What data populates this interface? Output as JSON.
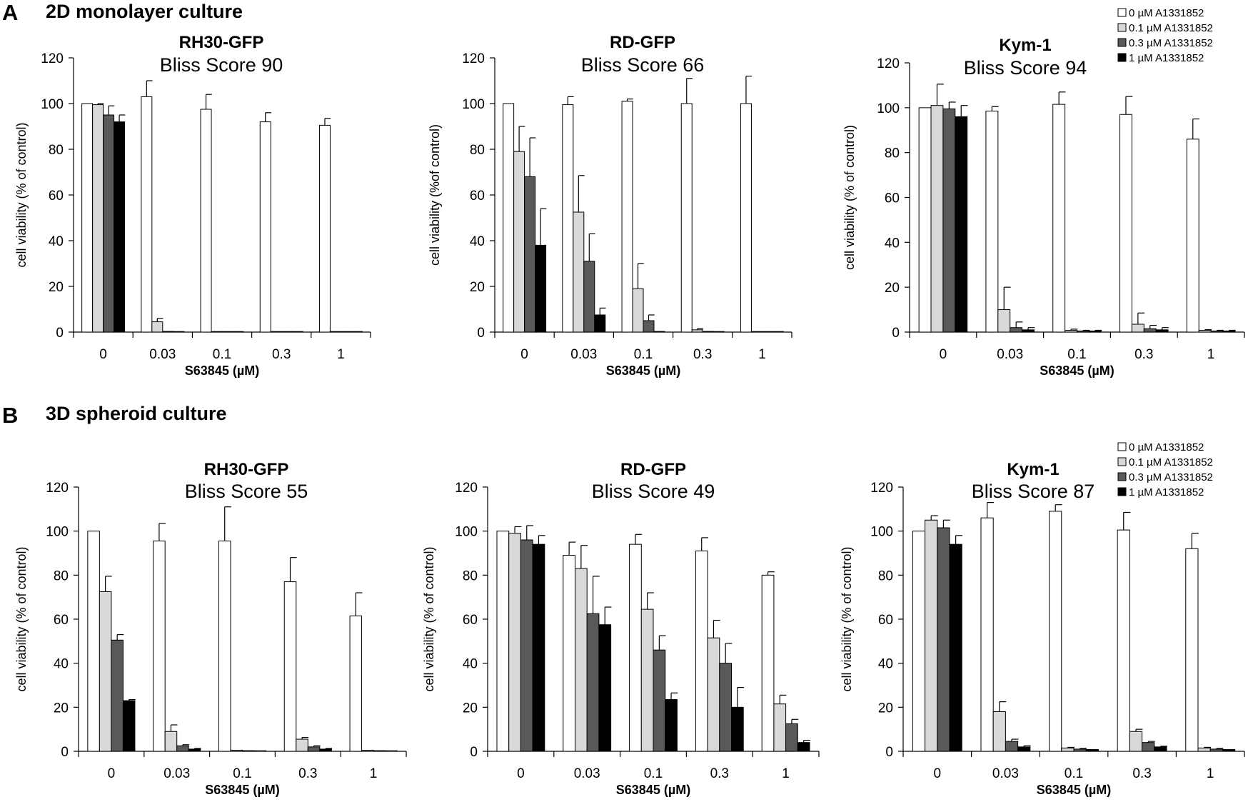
{
  "panels": [
    {
      "letter": "A",
      "title": "2D monolayer culture"
    },
    {
      "letter": "B",
      "title": "3D spheroid culture"
    }
  ],
  "legend": {
    "items": [
      {
        "label": "0 µM A1331852",
        "color": "#ffffff"
      },
      {
        "label": "0.1 µM A1331852",
        "color": "#d9d9d9"
      },
      {
        "label": "0.3 µM A1331852",
        "color": "#595959"
      },
      {
        "label": "1 µM A1331852",
        "color": "#000000"
      }
    ]
  },
  "chart_data": [
    {
      "type": "bar",
      "panel": "A",
      "title": "RH30-GFP",
      "subtitle": "Bliss Score 90",
      "categories": [
        "0",
        "0.03",
        "0.1",
        "0.3",
        "1"
      ],
      "xlabel": "S63845 (µM)",
      "ylabel": "cell viability (% of control)",
      "ylim": [
        0,
        120
      ],
      "yticks": [
        0,
        20,
        40,
        60,
        80,
        100,
        120
      ],
      "series": [
        {
          "name": "0 µM A1331852",
          "values": [
            100,
            103,
            97.5,
            92,
            90.5
          ],
          "errors": [
            0,
            7,
            6.5,
            4,
            3
          ]
        },
        {
          "name": "0.1 µM A1331852",
          "values": [
            99.5,
            4.5,
            0,
            0,
            0
          ],
          "errors": [
            0.5,
            1.5,
            0,
            0,
            0
          ]
        },
        {
          "name": "0.3 µM A1331852",
          "values": [
            95,
            0.3,
            0,
            0,
            0
          ],
          "errors": [
            4,
            0,
            0,
            0,
            0
          ]
        },
        {
          "name": "1 µM A1331852",
          "values": [
            92,
            0,
            0,
            0,
            0
          ],
          "errors": [
            3,
            0,
            0,
            0,
            0
          ]
        }
      ]
    },
    {
      "type": "bar",
      "panel": "A",
      "title": "RD-GFP",
      "subtitle": "Bliss Score 66",
      "categories": [
        "0",
        "0.03",
        "0.1",
        "0.3",
        "1"
      ],
      "xlabel": "S63845 (µM)",
      "ylabel": "cell viability (%of control)",
      "ylim": [
        0,
        120
      ],
      "yticks": [
        0,
        20,
        40,
        60,
        80,
        100,
        120
      ],
      "series": [
        {
          "name": "0 µM A1331852",
          "values": [
            100,
            99.5,
            101,
            100,
            100
          ],
          "errors": [
            0,
            3.5,
            1,
            11,
            12
          ]
        },
        {
          "name": "0.1 µM A1331852",
          "values": [
            79,
            52.5,
            19,
            1,
            0
          ],
          "errors": [
            11,
            16,
            11,
            0.5,
            0
          ]
        },
        {
          "name": "0.3 µM A1331852",
          "values": [
            68,
            31,
            5,
            0.3,
            0
          ],
          "errors": [
            17,
            12,
            2.5,
            0,
            0
          ]
        },
        {
          "name": "1 µM A1331852",
          "values": [
            38,
            7.5,
            0.3,
            0,
            0
          ],
          "errors": [
            16,
            3,
            0,
            0,
            0
          ]
        }
      ]
    },
    {
      "type": "bar",
      "panel": "A",
      "title": "Kym-1",
      "subtitle": "Bliss Score 94",
      "categories": [
        "0",
        "0.03",
        "0.1",
        "0.3",
        "1"
      ],
      "xlabel": "S63845 (µM)",
      "ylabel": "cell viability (% of control)",
      "ylim": [
        0,
        120
      ],
      "yticks": [
        0,
        20,
        40,
        60,
        80,
        100,
        120
      ],
      "series": [
        {
          "name": "0 µM A1331852",
          "values": [
            100,
            98.5,
            101.5,
            97,
            86
          ],
          "errors": [
            0,
            2,
            5.5,
            8,
            9
          ]
        },
        {
          "name": "0.1 µM A1331852",
          "values": [
            101,
            10,
            0.8,
            3.5,
            0.8
          ],
          "errors": [
            9.5,
            10,
            0.5,
            5,
            0.3
          ]
        },
        {
          "name": "0.3 µM A1331852",
          "values": [
            99.5,
            2,
            0.5,
            1.5,
            0.5
          ],
          "errors": [
            3,
            2.5,
            0.3,
            1.5,
            0.3
          ]
        },
        {
          "name": "1 µM A1331852",
          "values": [
            96,
            1,
            0.5,
            1,
            0.5
          ],
          "errors": [
            5,
            1,
            0.3,
            1,
            0.3
          ]
        }
      ]
    },
    {
      "type": "bar",
      "panel": "B",
      "title": "RH30-GFP",
      "subtitle": "Bliss Score 55",
      "categories": [
        "0",
        "0.03",
        "0.1",
        "0.3",
        "1"
      ],
      "xlabel": "S63845 (µM)",
      "ylabel": "cell viability (% of control)",
      "ylim": [
        0,
        120
      ],
      "yticks": [
        0,
        20,
        40,
        60,
        80,
        100,
        120
      ],
      "series": [
        {
          "name": "0 µM A1331852",
          "values": [
            100,
            95.5,
            95.5,
            77,
            61.5
          ],
          "errors": [
            0,
            8,
            15.5,
            11,
            10.5
          ]
        },
        {
          "name": "0.1 µM A1331852",
          "values": [
            72.5,
            9,
            0.5,
            5.5,
            0.5
          ],
          "errors": [
            7,
            3,
            0,
            0.8,
            0
          ]
        },
        {
          "name": "0.3 µM A1331852",
          "values": [
            50.5,
            2.5,
            0.3,
            2,
            0.3
          ],
          "errors": [
            2.5,
            0.5,
            0,
            0.5,
            0
          ]
        },
        {
          "name": "1 µM A1331852",
          "values": [
            23,
            1,
            0.2,
            1,
            0.2
          ],
          "errors": [
            0.5,
            0.3,
            0,
            0.3,
            0
          ]
        }
      ]
    },
    {
      "type": "bar",
      "panel": "B",
      "title": "RD-GFP",
      "subtitle": "Bliss Score 49",
      "categories": [
        "0",
        "0.03",
        "0.1",
        "0.3",
        "1"
      ],
      "xlabel": "S63845 (µM)",
      "ylabel": "cell viability (% of control)",
      "ylim": [
        0,
        120
      ],
      "yticks": [
        0,
        20,
        40,
        60,
        80,
        100,
        120
      ],
      "series": [
        {
          "name": "0 µM A1331852",
          "values": [
            100,
            89,
            94,
            91,
            80
          ],
          "errors": [
            0,
            6,
            4.5,
            6,
            1.5
          ]
        },
        {
          "name": "0.1 µM A1331852",
          "values": [
            99,
            83,
            64.5,
            51.5,
            21.5
          ],
          "errors": [
            3,
            10.5,
            7.5,
            8,
            4
          ]
        },
        {
          "name": "0.3 µM A1331852",
          "values": [
            96,
            62.5,
            46,
            40,
            12.5
          ],
          "errors": [
            6.5,
            17,
            6.5,
            9,
            2
          ]
        },
        {
          "name": "1 µM A1331852",
          "values": [
            94,
            57.5,
            23.5,
            20,
            4
          ],
          "errors": [
            4,
            8,
            3,
            9,
            1
          ]
        }
      ]
    },
    {
      "type": "bar",
      "panel": "B",
      "title": "Kym-1",
      "subtitle": "Bliss Score 87",
      "categories": [
        "0",
        "0.03",
        "0.1",
        "0.3",
        "1"
      ],
      "xlabel": "S63845 (µM)",
      "ylabel": "cell viability (% of control)",
      "ylim": [
        0,
        120
      ],
      "yticks": [
        0,
        20,
        40,
        60,
        80,
        100,
        120
      ],
      "series": [
        {
          "name": "0 µM A1331852",
          "values": [
            100,
            106,
            109,
            100.5,
            92
          ],
          "errors": [
            0,
            7,
            3,
            8,
            7
          ]
        },
        {
          "name": "0.1 µM A1331852",
          "values": [
            105,
            18,
            1.5,
            9,
            1.5
          ],
          "errors": [
            2,
            4.5,
            0.3,
            1,
            0.3
          ]
        },
        {
          "name": "0.3 µM A1331852",
          "values": [
            101.5,
            4.5,
            1,
            4,
            1
          ],
          "errors": [
            3.5,
            1,
            0.3,
            0.5,
            0.3
          ]
        },
        {
          "name": "1 µM A1331852",
          "values": [
            94,
            2,
            0.8,
            2,
            0.8
          ],
          "errors": [
            4,
            0.5,
            0.2,
            0.3,
            0.2
          ]
        }
      ]
    }
  ]
}
